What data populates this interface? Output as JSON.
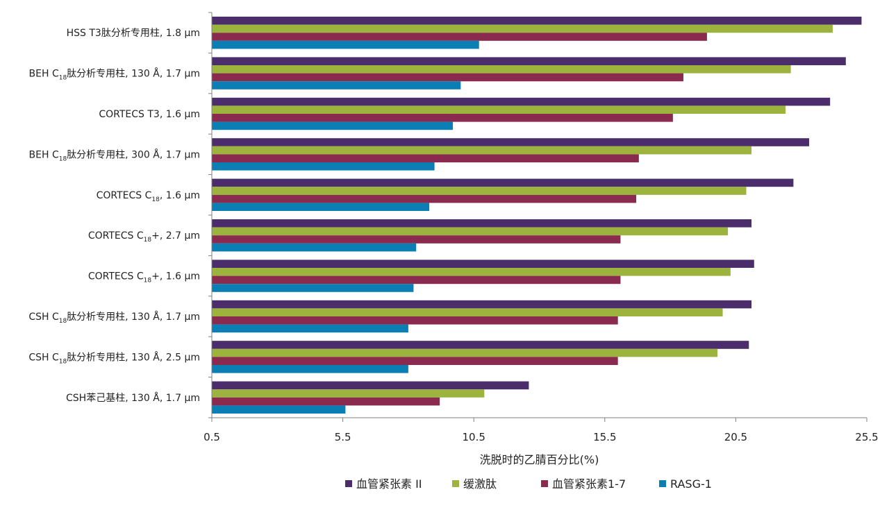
{
  "chart_data": {
    "type": "bar",
    "orientation": "horizontal",
    "xlabel": "洗脱时的乙腈百分比(%)",
    "xlim": [
      0.5,
      25.5
    ],
    "xticks": [
      "0.5",
      "5.5",
      "10.5",
      "15.5",
      "20.5",
      "25.5"
    ],
    "grid": false,
    "legend_position": "bottom",
    "categories": [
      {
        "parts": [
          "HSS T3肽分析专用柱, 1.8 µm"
        ]
      },
      {
        "parts": [
          "BEH C",
          "18",
          "肽分析专用柱, 130 Å, 1.7 µm"
        ]
      },
      {
        "parts": [
          "CORTECS T3, 1.6 µm"
        ]
      },
      {
        "parts": [
          "BEH C",
          "18",
          "肽分析专用柱, 300 Å, 1.7 µm"
        ]
      },
      {
        "parts": [
          "CORTECS C",
          "18",
          ", 1.6 µm"
        ]
      },
      {
        "parts": [
          "CORTECS C",
          "18",
          "+, 2.7 µm"
        ]
      },
      {
        "parts": [
          "CORTECS C",
          "18",
          "+, 1.6 µm"
        ]
      },
      {
        "parts": [
          "CSH C",
          "18",
          "肽分析专用柱, 130 Å, 1.7 µm"
        ]
      },
      {
        "parts": [
          "CSH C",
          "18",
          "肽分析专用柱, 130 Å, 2.5 µm"
        ]
      },
      {
        "parts": [
          "CSH苯己基柱, 130 Å, 1.7 µm"
        ]
      }
    ],
    "series": [
      {
        "name": "血管紧张素 II",
        "color": "#4b2d6b",
        "values": [
          25.3,
          24.7,
          24.1,
          23.3,
          22.7,
          21.1,
          21.2,
          21.1,
          21.0,
          12.6
        ]
      },
      {
        "name": "缓激肽",
        "color": "#9cb33e",
        "values": [
          24.2,
          22.6,
          22.4,
          21.1,
          20.9,
          20.2,
          20.3,
          20.0,
          19.8,
          10.9
        ]
      },
      {
        "name": "血管紧张素1-7",
        "color": "#8a2a4e",
        "values": [
          19.4,
          18.5,
          18.1,
          16.8,
          16.7,
          16.1,
          16.1,
          16.0,
          16.0,
          9.2
        ]
      },
      {
        "name": "RASG-1",
        "color": "#0b7fb3",
        "values": [
          10.7,
          10.0,
          9.7,
          9.0,
          8.8,
          8.3,
          8.2,
          8.0,
          8.0,
          5.6
        ]
      }
    ]
  }
}
